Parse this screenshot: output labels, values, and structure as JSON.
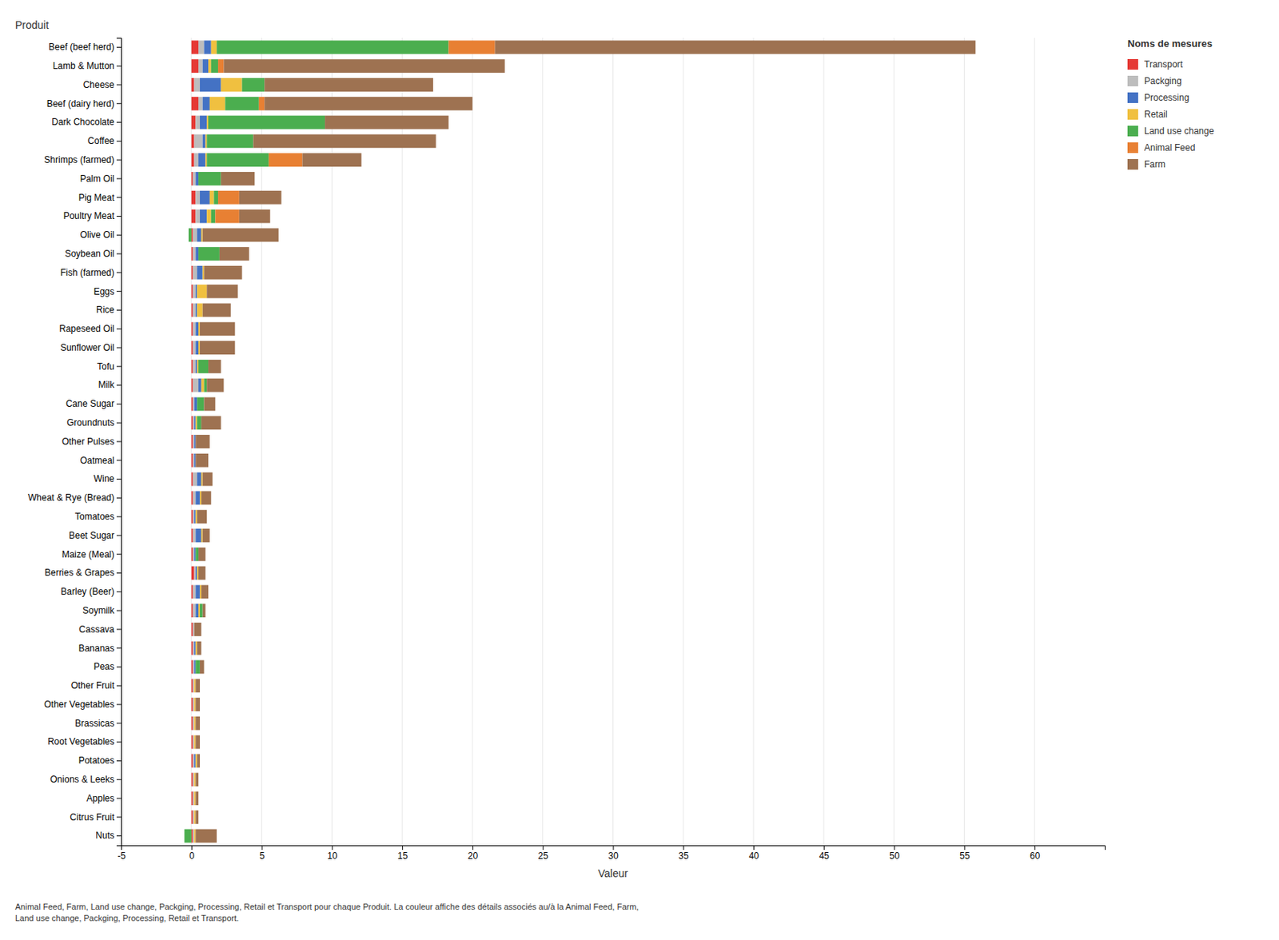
{
  "chart_data": {
    "type": "bar",
    "orientation": "horizontal",
    "stacked": true,
    "grid": true,
    "legend": "top-right",
    "xlabel": "Valeur",
    "ylabel": "Produit",
    "legend_title": "Noms de mesures",
    "caption": "Animal Feed, Farm, Land use change, Packging, Processing, Retail et Transport pour chaque Produit.  La couleur affiche des détails associés au/à la Animal Feed, Farm,\nLand use change, Packging, Processing, Retail et Transport.",
    "xlim": [
      -5,
      65
    ],
    "xticks": [
      -5,
      0,
      5,
      10,
      15,
      20,
      25,
      30,
      35,
      40,
      45,
      50,
      55,
      60
    ],
    "categories": [
      "Beef (beef herd)",
      "Lamb & Mutton",
      "Cheese",
      "Beef (dairy herd)",
      "Dark Chocolate",
      "Coffee",
      "Shrimps (farmed)",
      "Palm Oil",
      "Pig Meat",
      "Poultry Meat",
      "Olive Oil",
      "Soybean Oil",
      "Fish (farmed)",
      "Eggs",
      "Rice",
      "Rapeseed Oil",
      "Sunflower Oil",
      "Tofu",
      "Milk",
      "Cane Sugar",
      "Groundnuts",
      "Other Pulses",
      "Oatmeal",
      "Wine",
      "Wheat & Rye (Bread)",
      "Tomatoes",
      "Beet Sugar",
      "Maize (Meal)",
      "Berries & Grapes",
      "Barley (Beer)",
      "Soymilk",
      "Cassava",
      "Bananas",
      "Peas",
      "Other Fruit",
      "Other Vegetables",
      "Brassicas",
      "Root Vegetables",
      "Potatoes",
      "Onions & Leeks",
      "Apples",
      "Citrus Fruit",
      "Nuts"
    ],
    "series": [
      {
        "name": "Transport",
        "color": "#E53935",
        "values": [
          0.5,
          0.5,
          0.2,
          0.5,
          0.3,
          0.2,
          0.2,
          0.1,
          0.3,
          0.3,
          0.1,
          0.1,
          0.1,
          0.1,
          0.1,
          0.1,
          0.1,
          0.1,
          0.1,
          0.1,
          0.1,
          0.1,
          0.1,
          0.1,
          0.1,
          0.1,
          0.1,
          0.1,
          0.2,
          0.1,
          0.1,
          0.1,
          0.1,
          0.1,
          0.1,
          0.1,
          0.1,
          0.1,
          0.1,
          0.1,
          0.1,
          0.1,
          0.1
        ]
      },
      {
        "name": "Packging",
        "color": "#BDBDBD",
        "values": [
          0.4,
          0.3,
          0.4,
          0.3,
          0.3,
          0.6,
          0.3,
          0.2,
          0.3,
          0.3,
          0.3,
          0.2,
          0.3,
          0.2,
          0.2,
          0.2,
          0.2,
          0.2,
          0.4,
          0.1,
          0.1,
          0.1,
          0.1,
          0.3,
          0.2,
          0.1,
          0.2,
          0.1,
          0.1,
          0.2,
          0.2,
          0.1,
          0.1,
          0.1,
          0.1,
          0.1,
          0.1,
          0.1,
          0.1,
          0.1,
          0.1,
          0.1,
          0.1
        ]
      },
      {
        "name": "Processing",
        "color": "#4472C4",
        "values": [
          0.5,
          0.4,
          1.5,
          0.5,
          0.5,
          0.2,
          0.5,
          0.2,
          0.7,
          0.5,
          0.3,
          0.2,
          0.4,
          0.1,
          0.1,
          0.2,
          0.2,
          0.1,
          0.2,
          0.2,
          0.1,
          0.1,
          0.1,
          0.3,
          0.3,
          0.1,
          0.4,
          0.1,
          0.1,
          0.3,
          0.2,
          0.0,
          0.1,
          0.1,
          0.0,
          0.0,
          0.0,
          0.0,
          0.1,
          0.0,
          0.0,
          0.0,
          0.0
        ]
      },
      {
        "name": "Retail",
        "color": "#F0C040",
        "values": [
          0.4,
          0.2,
          1.5,
          1.1,
          0.1,
          0.1,
          0.1,
          0.0,
          0.3,
          0.3,
          0.1,
          0.0,
          0.1,
          0.7,
          0.4,
          0.1,
          0.1,
          0.1,
          0.2,
          0.0,
          0.1,
          0.0,
          0.0,
          0.1,
          0.1,
          0.1,
          0.1,
          0.0,
          0.1,
          0.1,
          0.1,
          0.0,
          0.1,
          0.0,
          0.1,
          0.1,
          0.1,
          0.1,
          0.1,
          0.1,
          0.1,
          0.1,
          0.1
        ]
      },
      {
        "name": "Land use change",
        "color": "#4BAE4F",
        "values": [
          16.5,
          0.5,
          1.6,
          2.4,
          8.3,
          3.3,
          4.4,
          1.6,
          0.3,
          0.3,
          -0.2,
          1.5,
          0.0,
          0.0,
          0.0,
          0.0,
          0.0,
          0.7,
          0.2,
          0.5,
          0.3,
          0.0,
          0.0,
          0.0,
          0.0,
          0.0,
          0.0,
          0.2,
          0.0,
          0.0,
          0.2,
          0.0,
          0.0,
          0.3,
          0.0,
          0.0,
          0.0,
          0.0,
          0.0,
          0.0,
          0.0,
          0.0,
          -0.5
        ]
      },
      {
        "name": "Animal Feed",
        "color": "#E88033",
        "values": [
          3.3,
          0.4,
          0.0,
          0.4,
          0.0,
          0.0,
          2.4,
          0.0,
          1.5,
          1.7,
          0.0,
          0.0,
          0.0,
          0.0,
          0.0,
          0.0,
          0.0,
          0.0,
          0.0,
          0.0,
          0.0,
          0.0,
          0.0,
          0.0,
          0.0,
          0.0,
          0.0,
          0.0,
          0.0,
          0.0,
          0.0,
          0.0,
          0.0,
          0.0,
          0.0,
          0.0,
          0.0,
          0.0,
          0.0,
          0.0,
          0.0,
          0.0,
          0.0
        ]
      },
      {
        "name": "Farm",
        "color": "#9E7251",
        "values": [
          34.2,
          20.0,
          12.0,
          14.8,
          8.8,
          13.0,
          4.2,
          2.4,
          3.0,
          2.2,
          5.4,
          2.1,
          2.7,
          2.2,
          2.0,
          2.5,
          2.5,
          0.9,
          1.2,
          0.8,
          1.4,
          1.0,
          0.9,
          0.7,
          0.7,
          0.7,
          0.5,
          0.5,
          0.5,
          0.5,
          0.2,
          0.5,
          0.3,
          0.3,
          0.3,
          0.3,
          0.3,
          0.3,
          0.2,
          0.2,
          0.2,
          0.2,
          1.5
        ]
      }
    ]
  }
}
